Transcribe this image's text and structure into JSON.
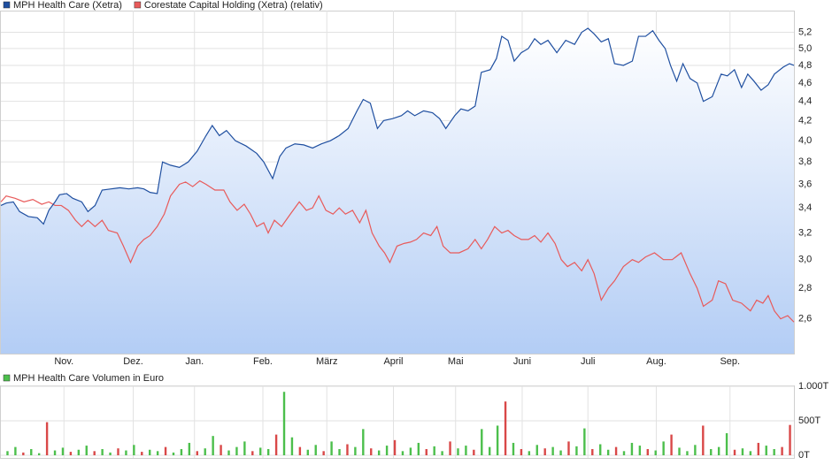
{
  "chart_data": [
    {
      "type": "line",
      "log_y": true,
      "grid": true,
      "area_under": 0,
      "xlim": [
        4,
        897
      ],
      "ylim": [
        2.39,
        5.48
      ],
      "xticks": [
        {
          "value": 75,
          "label": "Nov."
        },
        {
          "value": 153,
          "label": "Dez."
        },
        {
          "value": 222,
          "label": "Jan."
        },
        {
          "value": 299,
          "label": "Feb."
        },
        {
          "value": 371,
          "label": "März"
        },
        {
          "value": 446,
          "label": "April"
        },
        {
          "value": 516,
          "label": "Mai"
        },
        {
          "value": 591,
          "label": "Juni"
        },
        {
          "value": 665,
          "label": "Juli"
        },
        {
          "value": 742,
          "label": "Aug."
        },
        {
          "value": 825,
          "label": "Sep."
        }
      ],
      "yticks": [
        {
          "value": 5.2,
          "label": "5,2"
        },
        {
          "value": 5.0,
          "label": "5,0"
        },
        {
          "value": 4.8,
          "label": "4,8"
        },
        {
          "value": 4.6,
          "label": "4,6"
        },
        {
          "value": 4.4,
          "label": "4,4"
        },
        {
          "value": 4.2,
          "label": "4,2"
        },
        {
          "value": 4.0,
          "label": "4,0"
        },
        {
          "value": 3.8,
          "label": "3,8"
        },
        {
          "value": 3.6,
          "label": "3,6"
        },
        {
          "value": 3.4,
          "label": "3,4"
        },
        {
          "value": 3.2,
          "label": "3,2"
        },
        {
          "value": 3.0,
          "label": "3,0"
        },
        {
          "value": 2.8,
          "label": "2,8"
        },
        {
          "value": 2.6,
          "label": "2,6"
        }
      ],
      "series": [
        {
          "name": "MPH Health Care (Xetra)",
          "color": "#1f4fa0",
          "x": [
            4,
            10,
            18,
            25,
            35,
            45,
            52,
            58,
            65,
            70,
            78,
            85,
            95,
            102,
            110,
            118,
            128,
            138,
            148,
            158,
            165,
            172,
            180,
            186,
            195,
            205,
            215,
            225,
            235,
            242,
            250,
            258,
            268,
            280,
            292,
            300,
            310,
            318,
            325,
            335,
            345,
            355,
            365,
            375,
            385,
            395,
            405,
            412,
            420,
            428,
            435,
            445,
            455,
            462,
            470,
            480,
            490,
            498,
            505,
            515,
            522,
            530,
            538,
            545,
            555,
            562,
            568,
            575,
            582,
            590,
            598,
            605,
            612,
            620,
            630,
            640,
            650,
            658,
            665,
            672,
            680,
            688,
            695,
            705,
            715,
            722,
            730,
            738,
            745,
            752,
            758,
            765,
            772,
            780,
            788,
            795,
            805,
            815,
            822,
            830,
            838,
            845,
            852,
            860,
            868,
            875,
            885,
            892,
            897
          ],
          "values": [
            3.42,
            3.44,
            3.45,
            3.37,
            3.33,
            3.32,
            3.27,
            3.38,
            3.45,
            3.51,
            3.52,
            3.48,
            3.45,
            3.37,
            3.42,
            3.55,
            3.56,
            3.57,
            3.56,
            3.57,
            3.56,
            3.53,
            3.52,
            3.8,
            3.77,
            3.75,
            3.8,
            3.9,
            4.05,
            4.15,
            4.05,
            4.1,
            4.0,
            3.95,
            3.88,
            3.8,
            3.65,
            3.85,
            3.93,
            3.97,
            3.96,
            3.93,
            3.97,
            4.0,
            4.05,
            4.12,
            4.3,
            4.42,
            4.38,
            4.12,
            4.2,
            4.22,
            4.25,
            4.3,
            4.25,
            4.3,
            4.28,
            4.22,
            4.12,
            4.25,
            4.32,
            4.3,
            4.35,
            4.72,
            4.75,
            4.88,
            5.15,
            5.1,
            4.85,
            4.95,
            5.0,
            5.12,
            5.05,
            5.1,
            4.95,
            5.1,
            5.05,
            5.2,
            5.25,
            5.18,
            5.08,
            5.12,
            4.82,
            4.8,
            4.85,
            5.15,
            5.15,
            5.22,
            5.1,
            5.0,
            4.8,
            4.62,
            4.82,
            4.65,
            4.6,
            4.4,
            4.45,
            4.7,
            4.68,
            4.75,
            4.55,
            4.7,
            4.62,
            4.52,
            4.58,
            4.7,
            4.78,
            4.82,
            4.8
          ]
        },
        {
          "name": "Corestate Capital Holding (Xetra) (relativ)",
          "color": "#e85a5a",
          "x": [
            4,
            10,
            20,
            30,
            40,
            50,
            58,
            65,
            72,
            80,
            88,
            95,
            102,
            110,
            118,
            125,
            135,
            142,
            150,
            158,
            165,
            172,
            180,
            188,
            195,
            205,
            212,
            220,
            228,
            235,
            245,
            255,
            262,
            270,
            278,
            285,
            292,
            300,
            305,
            312,
            320,
            330,
            340,
            348,
            355,
            362,
            370,
            378,
            385,
            392,
            400,
            408,
            415,
            422,
            430,
            436,
            442,
            450,
            458,
            465,
            472,
            480,
            488,
            495,
            502,
            510,
            520,
            530,
            538,
            545,
            552,
            560,
            568,
            575,
            582,
            590,
            598,
            605,
            612,
            620,
            628,
            635,
            642,
            650,
            658,
            665,
            672,
            680,
            688,
            695,
            705,
            715,
            722,
            730,
            740,
            750,
            760,
            770,
            780,
            788,
            795,
            805,
            812,
            820,
            828,
            838,
            848,
            855,
            862,
            868,
            875,
            882,
            890,
            897
          ],
          "values": [
            3.45,
            3.5,
            3.48,
            3.45,
            3.47,
            3.43,
            3.45,
            3.42,
            3.42,
            3.38,
            3.3,
            3.25,
            3.3,
            3.25,
            3.3,
            3.22,
            3.2,
            3.1,
            2.98,
            3.1,
            3.15,
            3.18,
            3.25,
            3.35,
            3.5,
            3.6,
            3.62,
            3.58,
            3.63,
            3.6,
            3.55,
            3.55,
            3.45,
            3.38,
            3.43,
            3.35,
            3.25,
            3.28,
            3.2,
            3.3,
            3.25,
            3.35,
            3.45,
            3.38,
            3.4,
            3.5,
            3.38,
            3.35,
            3.4,
            3.35,
            3.38,
            3.28,
            3.38,
            3.2,
            3.1,
            3.05,
            2.98,
            3.1,
            3.12,
            3.13,
            3.15,
            3.2,
            3.18,
            3.25,
            3.1,
            3.05,
            3.05,
            3.08,
            3.15,
            3.08,
            3.15,
            3.25,
            3.2,
            3.22,
            3.18,
            3.15,
            3.15,
            3.18,
            3.13,
            3.2,
            3.12,
            3.0,
            2.95,
            2.98,
            2.92,
            3.0,
            2.9,
            2.72,
            2.8,
            2.85,
            2.95,
            3.0,
            2.98,
            3.02,
            3.05,
            3.0,
            3.0,
            3.05,
            2.9,
            2.8,
            2.68,
            2.72,
            2.85,
            2.83,
            2.72,
            2.7,
            2.65,
            2.72,
            2.7,
            2.75,
            2.65,
            2.6,
            2.62,
            2.58
          ]
        }
      ]
    },
    {
      "type": "bar",
      "grid": true,
      "ylim": [
        0,
        1000
      ],
      "yticks": [
        {
          "value": 1000,
          "label": "1.000T"
        },
        {
          "value": 500,
          "label": "500T"
        },
        {
          "value": 0,
          "label": "0T"
        }
      ],
      "series": [
        {
          "name": "MPH Health Care Volumen in Euro",
          "color": "#4cbf4c",
          "values": [
            60,
            120,
            40,
            90,
            30,
            480,
            70,
            110,
            50,
            80,
            140,
            60,
            90,
            40,
            100,
            70,
            150,
            50,
            80,
            60,
            120,
            40,
            90,
            180,
            60,
            100,
            280,
            150,
            70,
            120,
            200,
            60,
            110,
            90,
            300,
            920,
            260,
            120,
            80,
            150,
            60,
            200,
            90,
            160,
            120,
            380,
            100,
            70,
            140,
            220,
            60,
            110,
            180,
            90,
            130,
            60,
            200,
            100,
            140,
            80,
            380,
            120,
            430,
            780,
            180,
            90,
            60,
            150,
            100,
            120,
            70,
            200,
            130,
            390,
            90,
            160,
            80,
            120,
            60,
            180,
            140,
            90,
            70,
            200,
            300,
            110,
            60,
            150,
            430,
            90,
            120,
            320,
            80,
            100,
            60,
            180,
            140,
            90,
            120,
            440
          ],
          "colors": [
            "#4cbf4c",
            "#4cbf4c",
            "#d94848",
            "#4cbf4c",
            "#4cbf4c",
            "#d94848",
            "#4cbf4c",
            "#4cbf4c",
            "#d94848",
            "#4cbf4c",
            "#4cbf4c",
            "#d94848",
            "#4cbf4c",
            "#4cbf4c",
            "#d94848",
            "#4cbf4c",
            "#4cbf4c",
            "#d94848",
            "#4cbf4c",
            "#4cbf4c",
            "#d94848",
            "#4cbf4c",
            "#4cbf4c",
            "#4cbf4c",
            "#d94848",
            "#4cbf4c",
            "#4cbf4c",
            "#d94848",
            "#4cbf4c",
            "#4cbf4c",
            "#4cbf4c",
            "#d94848",
            "#4cbf4c",
            "#4cbf4c",
            "#d94848",
            "#4cbf4c",
            "#4cbf4c",
            "#d94848",
            "#4cbf4c",
            "#4cbf4c",
            "#d94848",
            "#4cbf4c",
            "#4cbf4c",
            "#d94848",
            "#4cbf4c",
            "#4cbf4c",
            "#d94848",
            "#4cbf4c",
            "#4cbf4c",
            "#d94848",
            "#4cbf4c",
            "#4cbf4c",
            "#4cbf4c",
            "#d94848",
            "#4cbf4c",
            "#4cbf4c",
            "#d94848",
            "#4cbf4c",
            "#4cbf4c",
            "#d94848",
            "#4cbf4c",
            "#4cbf4c",
            "#4cbf4c",
            "#d94848",
            "#4cbf4c",
            "#d94848",
            "#4cbf4c",
            "#4cbf4c",
            "#d94848",
            "#4cbf4c",
            "#4cbf4c",
            "#d94848",
            "#4cbf4c",
            "#4cbf4c",
            "#d94848",
            "#4cbf4c",
            "#4cbf4c",
            "#d94848",
            "#4cbf4c",
            "#4cbf4c",
            "#4cbf4c",
            "#d94848",
            "#4cbf4c",
            "#4cbf4c",
            "#d94848",
            "#4cbf4c",
            "#4cbf4c",
            "#4cbf4c",
            "#d94848",
            "#4cbf4c",
            "#4cbf4c",
            "#4cbf4c",
            "#d94848",
            "#4cbf4c",
            "#4cbf4c",
            "#d94848",
            "#4cbf4c",
            "#4cbf4c",
            "#d94848",
            "#d94848"
          ]
        }
      ]
    }
  ]
}
